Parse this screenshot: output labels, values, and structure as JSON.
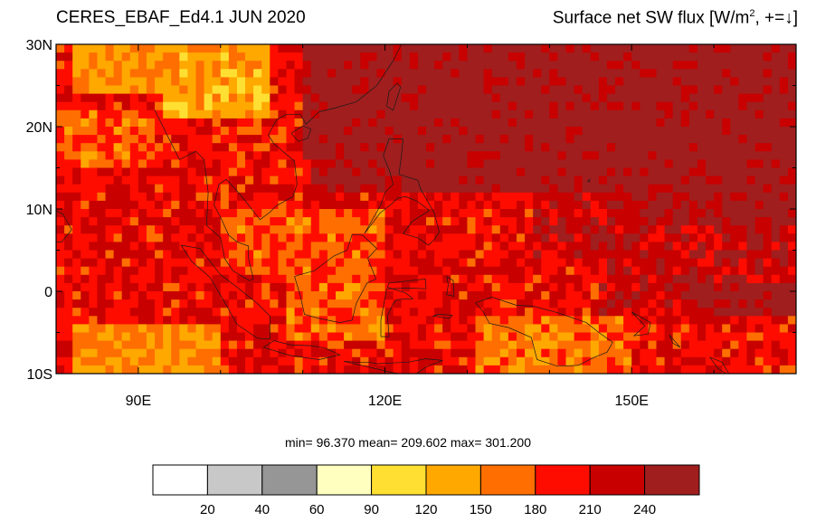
{
  "header": {
    "left_title": "CERES_EBAF_Ed4.1 JUN 2020",
    "right_title_prefix": "Surface net SW flux [W/m",
    "right_title_sup": "2",
    "right_title_suffix": ", +=↓]"
  },
  "map": {
    "projection": "cylindrical-equidistant",
    "lon_range_deg": [
      80,
      170
    ],
    "lat_range_deg": [
      -10,
      30
    ],
    "lat_ticks": [
      {
        "value": 30,
        "label": "30N"
      },
      {
        "value": 20,
        "label": "20N"
      },
      {
        "value": 10,
        "label": "10N"
      },
      {
        "value": 0,
        "label": "0"
      },
      {
        "value": -10,
        "label": "10S"
      }
    ],
    "lon_ticks": [
      {
        "value": 90,
        "label": "90E"
      },
      {
        "value": 120,
        "label": "120E"
      },
      {
        "value": 150,
        "label": "150E"
      }
    ],
    "coastlines": true
  },
  "stats": {
    "text": "min=  96.370  mean= 209.602  max= 301.200",
    "min": 96.37,
    "mean": 209.602,
    "max": 301.2
  },
  "colorbar": {
    "colors": [
      "#ffffff",
      "#c8c8c8",
      "#969696",
      "#ffffc0",
      "#ffe032",
      "#ffa800",
      "#ff6e00",
      "#ff0c00",
      "#c80000",
      "#a01e1e"
    ],
    "labels": [
      "20",
      "40",
      "60",
      "90",
      "120",
      "150",
      "180",
      "210",
      "240"
    ]
  }
}
